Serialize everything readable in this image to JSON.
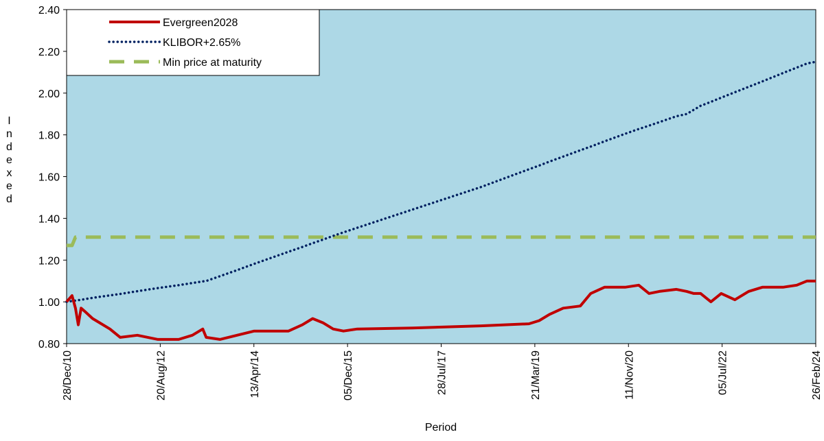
{
  "chart_data": {
    "type": "line",
    "x_label": "Period",
    "y_label": "Indexed",
    "x": [
      "2010-12-28",
      "2011-02-01",
      "2011-02-23",
      "2011-03-13",
      "2011-03-31",
      "2011-04-30",
      "2011-06-13",
      "2011-07-28",
      "2011-10-02",
      "2011-12-07",
      "2012-03-26",
      "2012-08-05",
      "2012-12-16",
      "2013-03-14",
      "2013-05-20",
      "2013-06-11",
      "2013-09-07",
      "2013-12-26",
      "2014-04-15",
      "2014-08-25",
      "2014-11-21",
      "2015-02-18",
      "2015-04-25",
      "2015-06-30",
      "2015-09-04",
      "2015-11-09",
      "2016-02-05",
      "2017-01-24",
      "2018-04-09",
      "2019-02-11",
      "2019-04-18",
      "2019-06-23",
      "2019-09-19",
      "2020-01-07",
      "2020-03-14",
      "2020-06-10",
      "2020-10-20",
      "2021-01-16",
      "2021-03-23",
      "2021-05-28",
      "2021-09-15",
      "2021-11-20",
      "2022-01-04",
      "2022-02-17",
      "2022-04-24",
      "2022-06-29",
      "2022-09-25",
      "2022-12-22",
      "2023-03-20",
      "2023-07-31",
      "2023-10-27",
      "2024-01-01",
      "2024-02-26"
    ],
    "series": [
      {
        "name": "Evergreen2028",
        "color": "#c00000",
        "style": "solid",
        "values": [
          1.0,
          1.03,
          0.97,
          0.89,
          0.97,
          0.95,
          0.92,
          0.9,
          0.87,
          0.83,
          0.84,
          0.82,
          0.82,
          0.84,
          0.87,
          0.83,
          0.82,
          0.84,
          0.86,
          0.86,
          0.86,
          0.89,
          0.92,
          0.9,
          0.87,
          0.86,
          0.87,
          0.875,
          0.885,
          0.895,
          0.91,
          0.94,
          0.97,
          0.98,
          1.04,
          1.07,
          1.07,
          1.08,
          1.04,
          1.05,
          1.06,
          1.05,
          1.04,
          1.04,
          1.0,
          1.04,
          1.01,
          1.05,
          1.07,
          1.07,
          1.08,
          1.1,
          1.1
        ]
      },
      {
        "name": "KLIBOR+2.65%",
        "color": "#002060",
        "style": "dotted",
        "values": [
          1.0,
          1.004,
          1.006,
          1.008,
          1.01,
          1.014,
          1.019,
          1.024,
          1.031,
          1.038,
          1.051,
          1.066,
          1.08,
          1.09,
          1.098,
          1.1,
          1.123,
          1.152,
          1.182,
          1.217,
          1.24,
          1.263,
          1.281,
          1.298,
          1.316,
          1.333,
          1.355,
          1.442,
          1.55,
          1.635,
          1.653,
          1.672,
          1.696,
          1.726,
          1.744,
          1.769,
          1.805,
          1.828,
          1.844,
          1.861,
          1.889,
          1.9,
          1.92,
          1.939,
          1.958,
          1.978,
          2.004,
          2.03,
          2.056,
          2.096,
          2.122,
          2.142,
          2.15
        ]
      },
      {
        "name": "Min price at maturity",
        "color": "#9bbb59",
        "style": "dashed",
        "values": [
          1.27,
          1.27,
          1.31,
          1.31,
          1.31,
          1.31,
          1.31,
          1.31,
          1.31,
          1.31,
          1.31,
          1.31,
          1.31,
          1.31,
          1.31,
          1.31,
          1.31,
          1.31,
          1.31,
          1.31,
          1.31,
          1.31,
          1.31,
          1.31,
          1.31,
          1.31,
          1.31,
          1.31,
          1.31,
          1.31,
          1.31,
          1.31,
          1.31,
          1.31,
          1.31,
          1.31,
          1.31,
          1.31,
          1.31,
          1.31,
          1.31,
          1.31,
          1.31,
          1.31,
          1.31,
          1.31,
          1.31,
          1.31,
          1.31,
          1.31,
          1.31,
          1.31,
          1.31
        ]
      }
    ],
    "xlim": [
      "2010-12-28",
      "2024-02-26"
    ],
    "xticks": [
      {
        "value": "2010-12-28",
        "label": "28/Dec/10"
      },
      {
        "value": "2012-08-20",
        "label": "20/Aug/12"
      },
      {
        "value": "2014-04-13",
        "label": "13/Apr/14"
      },
      {
        "value": "2015-12-05",
        "label": "05/Dec/15"
      },
      {
        "value": "2017-07-28",
        "label": "28/Jul/17"
      },
      {
        "value": "2019-03-21",
        "label": "21/Mar/19"
      },
      {
        "value": "2020-11-11",
        "label": "11/Nov/20"
      },
      {
        "value": "2022-07-05",
        "label": "05/Jul/22"
      },
      {
        "value": "2024-02-26",
        "label": "26/Feb/24"
      }
    ],
    "ylim": [
      0.8,
      2.4
    ],
    "yticks": [
      {
        "value": 0.8,
        "label": "0.80"
      },
      {
        "value": 1.0,
        "label": "1.00"
      },
      {
        "value": 1.2,
        "label": "1.20"
      },
      {
        "value": 1.4,
        "label": "1.40"
      },
      {
        "value": 1.6,
        "label": "1.60"
      },
      {
        "value": 1.8,
        "label": "1.80"
      },
      {
        "value": 2.0,
        "label": "2.00"
      },
      {
        "value": 2.2,
        "label": "2.20"
      },
      {
        "value": 2.4,
        "label": "2.40"
      }
    ],
    "grid": false,
    "legend": "upper left",
    "background": "#add8e6"
  }
}
